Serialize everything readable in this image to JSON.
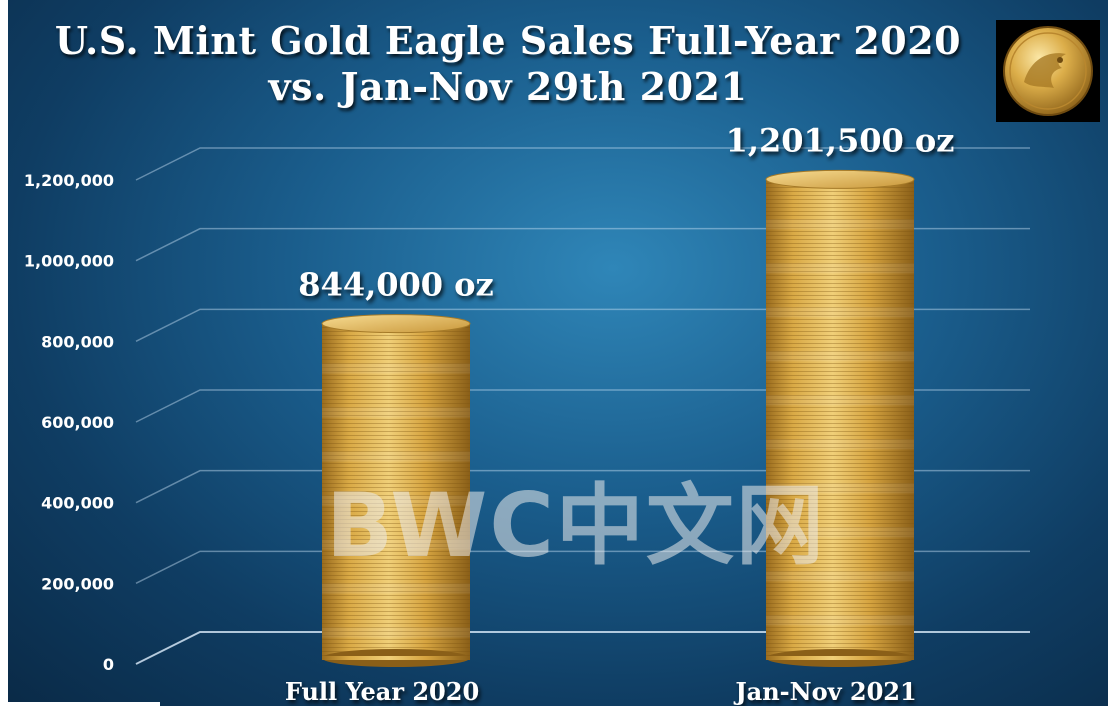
{
  "title_line1": "U.S. Mint Gold Eagle Sales Full-Year 2020",
  "title_line2": "vs. Jan-Nov 29th 2021",
  "watermark": "BWC中文网",
  "icons": {
    "coin": "gold-eagle-coin-icon"
  },
  "colors": {
    "background": "#1a5d8c",
    "gold_light": "#f3d27a",
    "gold_mid": "#d8a840",
    "gold_dark": "#8a6220",
    "text": "#ffffff"
  },
  "chart_data": {
    "type": "bar",
    "categories": [
      "Full Year 2020",
      "Jan-Nov 2021"
    ],
    "values": [
      844000,
      1201500
    ],
    "data_labels": [
      "844,000 oz",
      "1,201,500 oz"
    ],
    "yticks": [
      0,
      200000,
      400000,
      600000,
      800000,
      1000000,
      1200000
    ],
    "ytick_labels": [
      "0",
      "200,000",
      "400,000",
      "600,000",
      "800,000",
      "1,000,000",
      "1,200,000"
    ],
    "ylim": [
      0,
      1200000
    ],
    "grid": true
  }
}
